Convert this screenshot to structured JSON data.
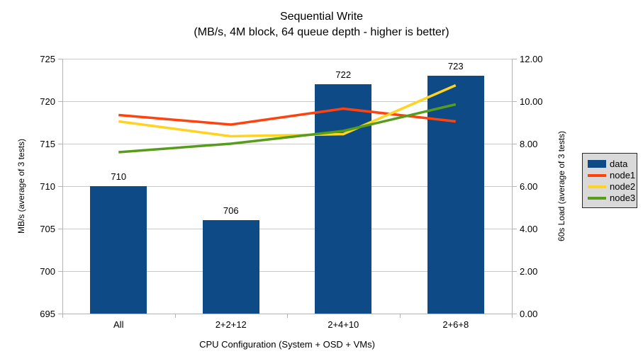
{
  "title": {
    "line1": "Sequential Write",
    "line2": "(MB/s, 4M block, 64 queue depth - higher is better)"
  },
  "chart_data": {
    "type": "combo-bar-line",
    "categories": [
      "All",
      "2+2+12",
      "2+4+10",
      "2+6+8"
    ],
    "series": [
      {
        "name": "data",
        "type": "bar",
        "axis": "left",
        "color": "#0d4a86",
        "values": [
          710,
          706,
          722,
          723
        ],
        "data_labels": [
          "710",
          "706",
          "722",
          "723"
        ]
      },
      {
        "name": "node1",
        "type": "line",
        "axis": "right",
        "color": "#ff420e",
        "values": [
          9.35,
          8.9,
          9.65,
          9.05
        ]
      },
      {
        "name": "node2",
        "type": "line",
        "axis": "right",
        "color": "#ffd320",
        "values": [
          9.05,
          8.35,
          8.45,
          10.75
        ]
      },
      {
        "name": "node3",
        "type": "line",
        "axis": "right",
        "color": "#579d1c",
        "values": [
          7.6,
          8.0,
          8.6,
          9.85
        ]
      }
    ],
    "axes": {
      "left": {
        "label": "MB/s (average of 3 tests)",
        "min": 695,
        "max": 725,
        "step": 5,
        "decimals": 0
      },
      "right": {
        "label": "60s Load (average of 3 tests)",
        "min": 0,
        "max": 12,
        "step": 2,
        "decimals": 2
      },
      "x": {
        "label": "CPU Configuration (System + OSD + VMs)"
      }
    },
    "legend": {
      "position": "right",
      "items": [
        "data",
        "node1",
        "node2",
        "node3"
      ]
    },
    "grid": true
  },
  "colors": {
    "bar": "#0d4a86",
    "node1": "#ff420e",
    "node2": "#ffd320",
    "node3": "#579d1c",
    "gridline": "#c9c9c9",
    "axis": "#b3b3b3",
    "legend_bg": "#d9d9d9"
  }
}
